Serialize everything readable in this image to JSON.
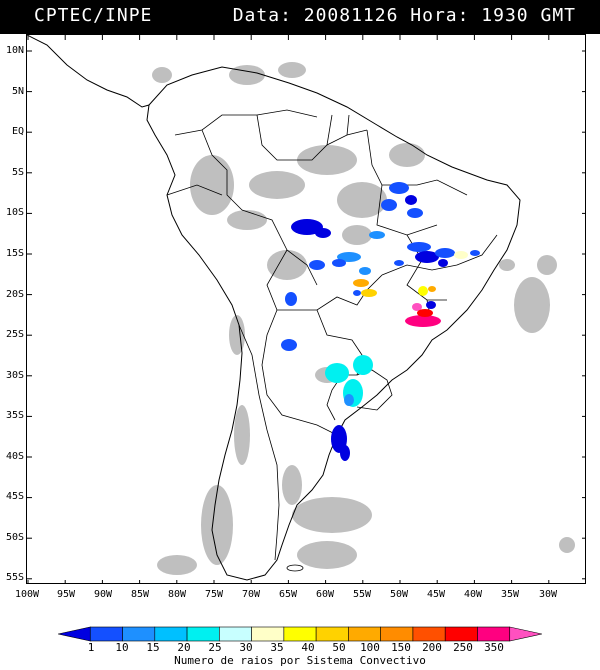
{
  "header": {
    "source": "CPTEC/INPE",
    "datetime": "Data: 20081126 Hora: 1930 GMT"
  },
  "axes": {
    "lat_labels": [
      "10N",
      "5N",
      "EQ",
      "5S",
      "10S",
      "15S",
      "20S",
      "25S",
      "30S",
      "35S",
      "40S",
      "45S",
      "50S",
      "55S"
    ],
    "lon_labels": [
      "100W",
      "95W",
      "90W",
      "85W",
      "80W",
      "75W",
      "70W",
      "65W",
      "60W",
      "55W",
      "50W",
      "45W",
      "40W",
      "35W",
      "30W"
    ]
  },
  "legend": {
    "values": [
      "1",
      "10",
      "15",
      "20",
      "25",
      "30",
      "35",
      "40",
      "50",
      "100",
      "150",
      "200",
      "250",
      "350"
    ],
    "colors": [
      "#0000e0",
      "#1450ff",
      "#1e90ff",
      "#00c0ff",
      "#00f0f0",
      "#c8ffff",
      "#ffffc8",
      "#ffff00",
      "#ffd200",
      "#ffaa00",
      "#ff8c00",
      "#ff5000",
      "#ff0000",
      "#ff0080",
      "#ff50c0"
    ],
    "caption": "Numero de raios por Sistema Convectivo"
  }
}
